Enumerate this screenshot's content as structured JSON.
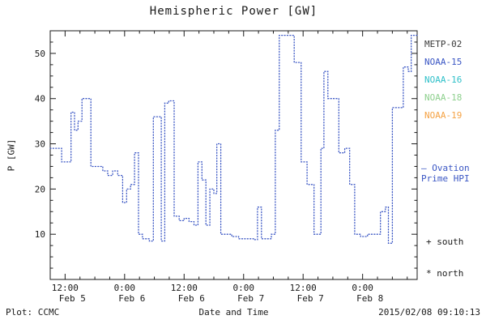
{
  "title": "Hemispheric Power [GW]",
  "footer": {
    "credit": "Plot: CCMC",
    "timestamp": "2015/02/08 09:10:13"
  },
  "legend": {
    "satellites": [
      {
        "label": "METP-02",
        "color": "#3a3a3a"
      },
      {
        "label": "NOAA-15",
        "color": "#3a56c4"
      },
      {
        "label": "NOAA-16",
        "color": "#2fc0c9"
      },
      {
        "label": "NOAA-18",
        "color": "#8ed08e"
      },
      {
        "label": "NOAA-19",
        "color": "#f5a243"
      }
    ],
    "model_line1": "— Ovation",
    "model_line2": "Prime HPI",
    "model_color": "#3a56c4",
    "south": "+ south",
    "north": "* north"
  },
  "chart_data": {
    "type": "line",
    "title": "Hemispheric Power [GW]",
    "xlabel": "Date and Time",
    "ylabel": "P [GW]",
    "ylim": [
      0,
      55
    ],
    "x_domain_hours": [
      9,
      83
    ],
    "x_domain_note": "hours since 2015 Feb 5 00:00 UT",
    "grid": false,
    "legend_position": "right",
    "y_ticks": [
      10,
      20,
      30,
      40,
      50
    ],
    "x_ticks": [
      {
        "hour": 12,
        "time": "12:00",
        "date": "Feb 5"
      },
      {
        "hour": 24,
        "time": "0:00",
        "date": "Feb 6"
      },
      {
        "hour": 36,
        "time": "12:00",
        "date": "Feb 6"
      },
      {
        "hour": 48,
        "time": "0:00",
        "date": "Feb 7"
      },
      {
        "hour": 60,
        "time": "12:00",
        "date": "Feb 7"
      },
      {
        "hour": 72,
        "time": "0:00",
        "date": "Feb 8"
      }
    ],
    "series": [
      {
        "name": "Ovation Prime HPI",
        "color": "#3a56c4",
        "line_style": "dotted-step",
        "points": [
          [
            9.0,
            29
          ],
          [
            11.3,
            26
          ],
          [
            13.2,
            37
          ],
          [
            13.9,
            33
          ],
          [
            14.6,
            35
          ],
          [
            15.4,
            40
          ],
          [
            16.9,
            40
          ],
          [
            17.2,
            25
          ],
          [
            18.6,
            25
          ],
          [
            19.6,
            24
          ],
          [
            20.6,
            23
          ],
          [
            21.6,
            24
          ],
          [
            22.6,
            23
          ],
          [
            23.6,
            17
          ],
          [
            24.4,
            20
          ],
          [
            25.2,
            21
          ],
          [
            26.0,
            28
          ],
          [
            26.8,
            10
          ],
          [
            27.6,
            9
          ],
          [
            29.0,
            8.5
          ],
          [
            29.8,
            36
          ],
          [
            30.8,
            36
          ],
          [
            31.4,
            8.5
          ],
          [
            32.1,
            39
          ],
          [
            32.9,
            39.5
          ],
          [
            34.0,
            14
          ],
          [
            35.0,
            13
          ],
          [
            36.0,
            13.5
          ],
          [
            37.0,
            12.8
          ],
          [
            38.0,
            12
          ],
          [
            38.8,
            26
          ],
          [
            39.6,
            22
          ],
          [
            40.4,
            12
          ],
          [
            41.2,
            20
          ],
          [
            42.0,
            19
          ],
          [
            42.6,
            30
          ],
          [
            43.4,
            10
          ],
          [
            44.6,
            10
          ],
          [
            45.6,
            9.5
          ],
          [
            47.0,
            9
          ],
          [
            49.0,
            9
          ],
          [
            50.0,
            8.8
          ],
          [
            50.8,
            16
          ],
          [
            51.6,
            9
          ],
          [
            52.6,
            9
          ],
          [
            53.6,
            10
          ],
          [
            54.4,
            33
          ],
          [
            55.2,
            54
          ],
          [
            57.4,
            54
          ],
          [
            58.2,
            48
          ],
          [
            59.2,
            48
          ],
          [
            59.6,
            26
          ],
          [
            60.8,
            21
          ],
          [
            62.2,
            10
          ],
          [
            63.6,
            29
          ],
          [
            64.2,
            46
          ],
          [
            65.0,
            40
          ],
          [
            66.8,
            40
          ],
          [
            67.2,
            28
          ],
          [
            68.4,
            29
          ],
          [
            69.4,
            21
          ],
          [
            70.4,
            10
          ],
          [
            71.6,
            9.5
          ],
          [
            73.0,
            10
          ],
          [
            74.6,
            10
          ],
          [
            75.6,
            15
          ],
          [
            76.6,
            16
          ],
          [
            77.2,
            8
          ],
          [
            78.0,
            38
          ],
          [
            79.6,
            38
          ],
          [
            80.2,
            47
          ],
          [
            81.2,
            46
          ],
          [
            81.8,
            54
          ],
          [
            82.6,
            54
          ]
        ]
      }
    ]
  }
}
